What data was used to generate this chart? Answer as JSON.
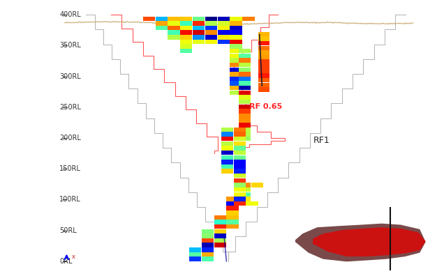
{
  "bg_color": "#ffffff",
  "y_ticks": [
    0,
    50,
    100,
    150,
    200,
    250,
    300,
    350,
    400
  ],
  "ylim": [
    -15,
    415
  ],
  "xlim": [
    -5,
    105
  ],
  "rf065_label": "RF 0.65",
  "rf1_label": "RF1",
  "rf065_color": "#ff2222",
  "rf1_color": "#222222",
  "surface_color": "#c8a870",
  "inset_bg": "#c8960a",
  "inset_brown": "#7a4a4a",
  "inset_red": "#cc1111"
}
